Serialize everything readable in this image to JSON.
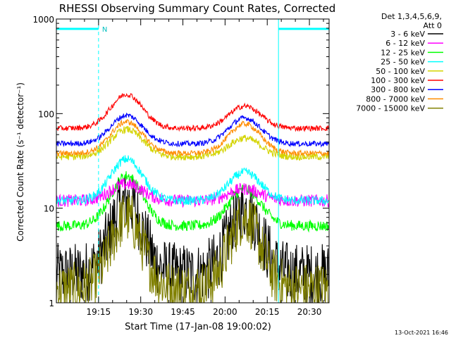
{
  "chart_data": {
    "type": "line",
    "title": "RHESSI Observing Summary Count Rates, Corrected",
    "xlabel": "Start Time (17-Jan-08 19:00:02)",
    "ylabel": "Corrected Count Rate (s⁻¹ detector⁻¹)",
    "ylim": [
      1,
      1000
    ],
    "yscale": "log",
    "xlim_minutes": [
      0,
      97
    ],
    "x_ticks": [
      {
        "minute": 15,
        "label": "19:15"
      },
      {
        "minute": 30,
        "label": "19:30"
      },
      {
        "minute": 45,
        "label": "19:45"
      },
      {
        "minute": 60,
        "label": "20:00"
      },
      {
        "minute": 75,
        "label": "20:15"
      },
      {
        "minute": 90,
        "label": "20:30"
      }
    ],
    "y_ticks": [
      {
        "value": 1,
        "label": "1"
      },
      {
        "value": 10,
        "label": "10"
      },
      {
        "value": 100,
        "label": "100"
      },
      {
        "value": 1000,
        "label": "1000"
      }
    ],
    "legend": {
      "position": "right",
      "header": [
        "Det 1,3,4,5,6,9,",
        "Att 0"
      ]
    },
    "series": [
      {
        "name": "3 - 6 keV",
        "color": "#000000",
        "base": 2.0,
        "peaks": [
          12,
          10
        ],
        "noise": 0.35
      },
      {
        "name": "6 - 12 keV",
        "color": "#ff00ff",
        "base": 12,
        "peaks": [
          18,
          16
        ],
        "noise": 0.07
      },
      {
        "name": "12 - 25 keV",
        "color": "#00ff00",
        "base": 6.5,
        "peaks": [
          22,
          16
        ],
        "noise": 0.06
      },
      {
        "name": "25 - 50 keV",
        "color": "#00ffff",
        "base": 12,
        "peaks": [
          33,
          24
        ],
        "noise": 0.05
      },
      {
        "name": "50 - 100 keV",
        "color": "#d4d400",
        "base": 35,
        "peaks": [
          68,
          55
        ],
        "noise": 0.04
      },
      {
        "name": "100 - 300 keV",
        "color": "#ff0000",
        "base": 70,
        "peaks": [
          160,
          120
        ],
        "noise": 0.03
      },
      {
        "name": "300 - 800 keV",
        "color": "#0000ff",
        "base": 48,
        "peaks": [
          96,
          90
        ],
        "noise": 0.03
      },
      {
        "name": "800 - 7000 keV",
        "color": "#ff8c00",
        "base": 38,
        "peaks": [
          82,
          78
        ],
        "noise": 0.03
      },
      {
        "name": "7000 - 15000 keV",
        "color": "#808000",
        "base": 1.4,
        "peaks": [
          8,
          8
        ],
        "noise": 0.3
      }
    ],
    "peak_minutes": [
      25,
      67
    ],
    "annotations": {
      "night_segments": [
        [
          0,
          15
        ],
        [
          79,
          97
        ]
      ],
      "night_label": "N",
      "vertical_dashed_minutes": [
        15,
        97
      ],
      "vertical_solid_minutes": [
        0,
        79
      ]
    }
  },
  "timestamp": "13-Oct-2021 16:46"
}
